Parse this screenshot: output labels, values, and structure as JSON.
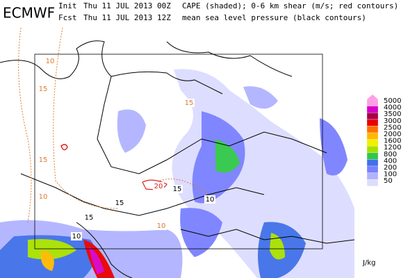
{
  "header": {
    "logo": "ECMWF",
    "lines": [
      {
        "kind": "Init",
        "time": "Thu 11 JUL 2013 00Z",
        "desc": "CAPE (shaded); 0-6 km shear (m/s; red contours)"
      },
      {
        "kind": "Fcst",
        "time": "Thu 11 JUL 2013 12Z",
        "desc": "mean sea level pressure (black contours)"
      }
    ]
  },
  "legend": {
    "levels": [
      5000,
      4000,
      3500,
      3000,
      2500,
      2000,
      1600,
      1200,
      800,
      400,
      200,
      100,
      50
    ],
    "colors": [
      "#ff9ee6",
      "#d600c8",
      "#a8004a",
      "#e80000",
      "#ff7000",
      "#ffb800",
      "#f0f000",
      "#a8e000",
      "#30c848",
      "#4070e8",
      "#7a80ff",
      "#b0b4ff",
      "#dcdcff"
    ],
    "unit": "J/kg"
  },
  "contour_labels": [
    10,
    15,
    15,
    10,
    10,
    15,
    15,
    10,
    15,
    20,
    15,
    10
  ]
}
